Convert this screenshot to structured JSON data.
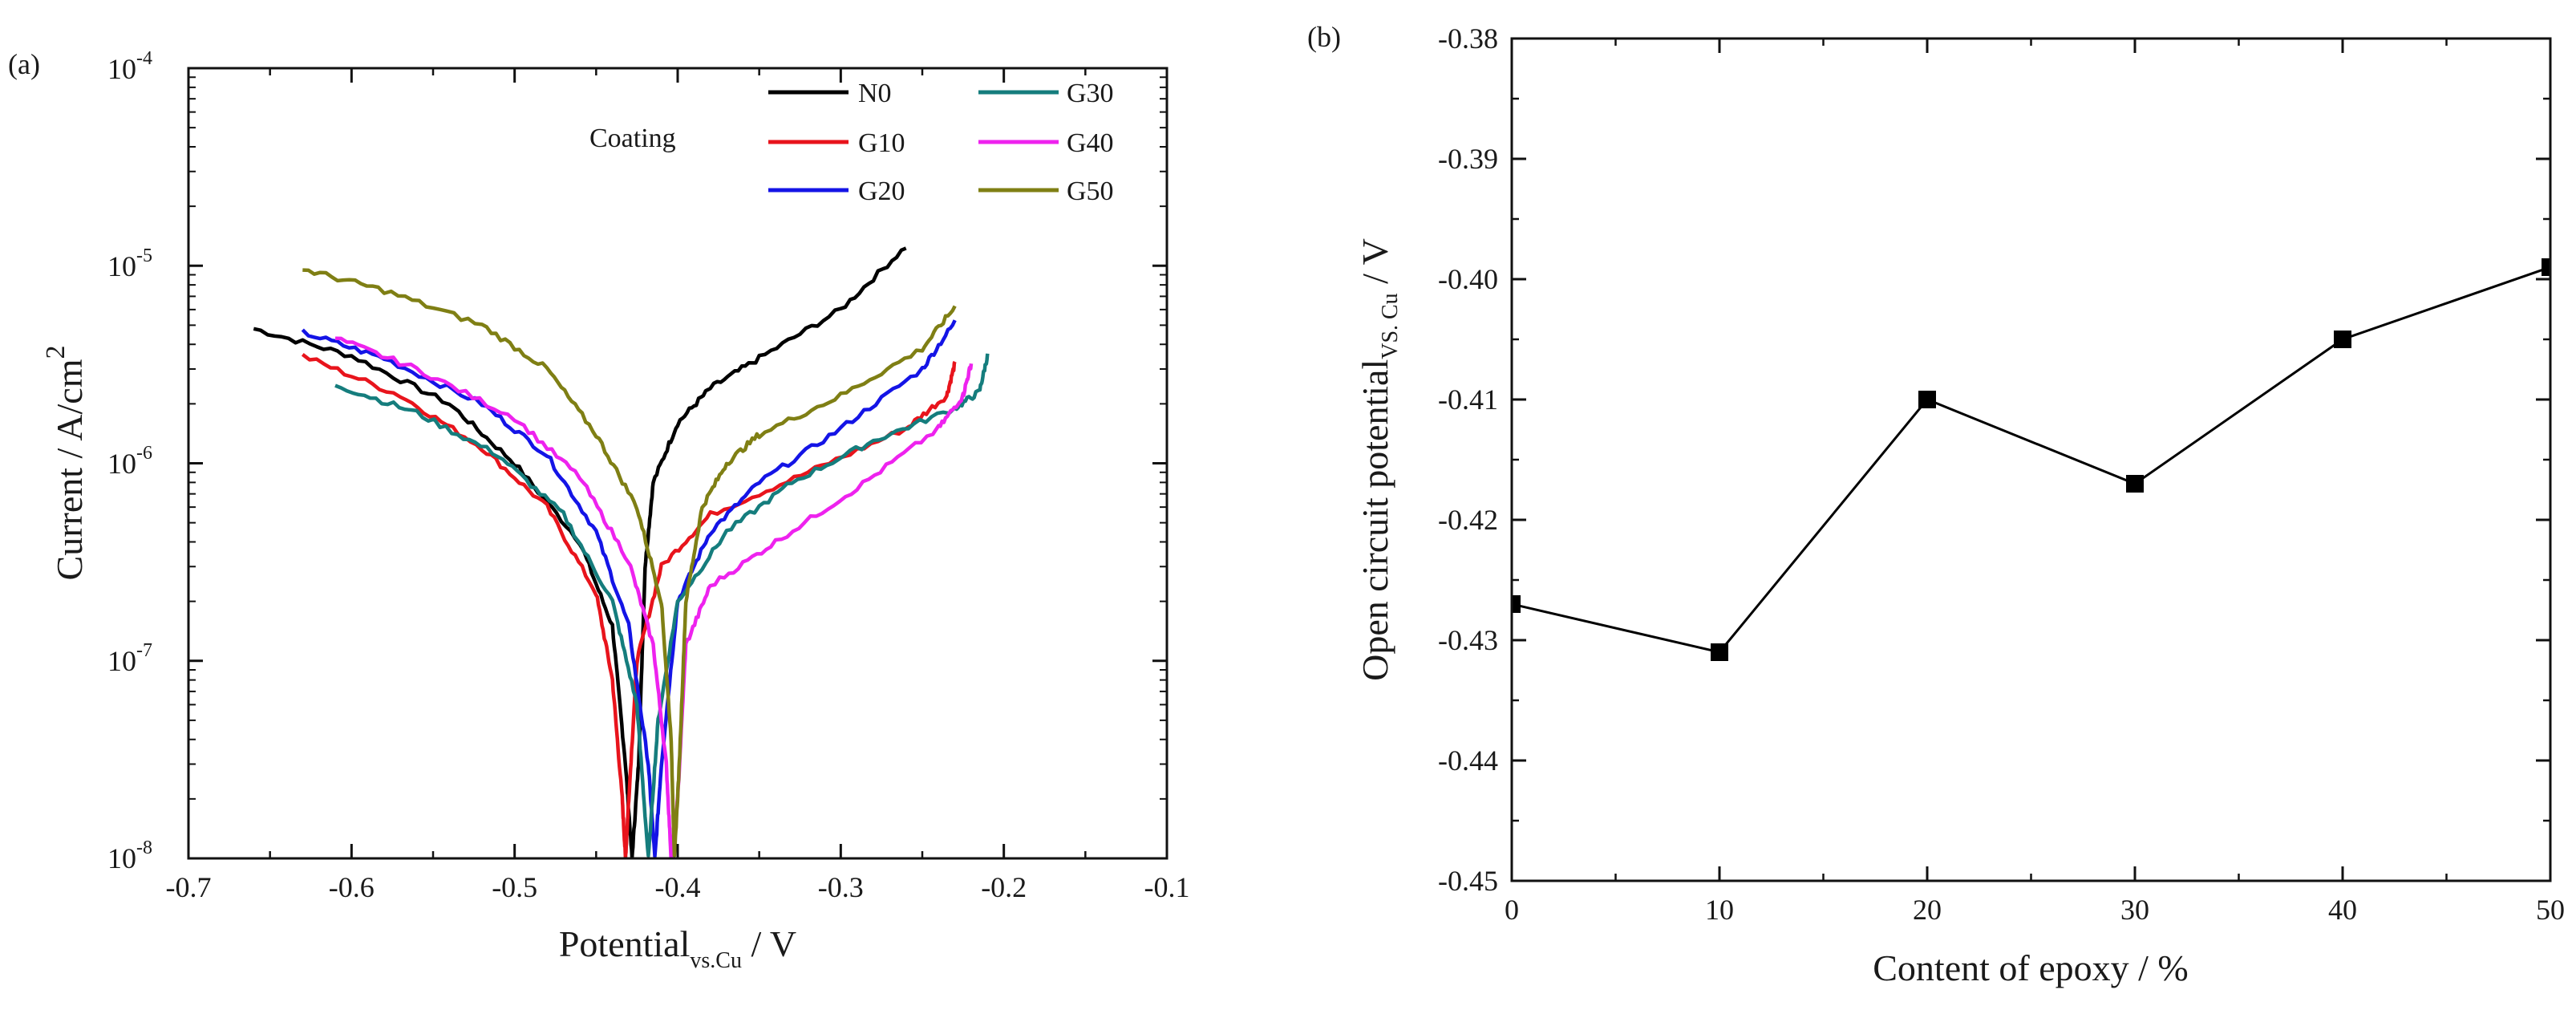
{
  "chart_data": [
    {
      "panel": "(a)",
      "type": "line",
      "title": "",
      "xlabel": "Potential",
      "xlabel_sub": "vs.Cu",
      "xlabel_unit": " / V",
      "ylabel": "Current / A/cm",
      "ylabel_sup": "2",
      "xlim": [
        -0.7,
        -0.1
      ],
      "ylim": [
        1e-08,
        0.0001
      ],
      "yscale": "log",
      "x_ticks": [
        "-0.7",
        "-0.6",
        "-0.5",
        "-0.4",
        "-0.3",
        "-0.2",
        "-0.1"
      ],
      "y_ticks": [
        {
          "base": "10",
          "exp": "-8"
        },
        {
          "base": "10",
          "exp": "-7"
        },
        {
          "base": "10",
          "exp": "-6"
        },
        {
          "base": "10",
          "exp": "-5"
        },
        {
          "base": "10",
          "exp": "-4"
        }
      ],
      "legend_title": "Coating",
      "legend_position": "top-right",
      "series": [
        {
          "name": "N0",
          "color": "#000000",
          "start": -0.66,
          "corr": -0.428,
          "end": -0.26,
          "points": [
            [
              -0.66,
              4.8e-06
            ],
            [
              -0.6,
              3.5e-06
            ],
            [
              -0.54,
              2e-06
            ],
            [
              -0.5,
              1e-06
            ],
            [
              -0.46,
              4e-07
            ],
            [
              -0.44,
              1.5e-07
            ],
            [
              -0.432,
              3e-08
            ],
            [
              -0.428,
              1e-08
            ],
            [
              -0.424,
              3e-08
            ],
            [
              -0.42,
              3e-07
            ],
            [
              -0.415,
              8e-07
            ],
            [
              -0.4,
              1.6e-06
            ],
            [
              -0.38,
              2.4e-06
            ],
            [
              -0.35,
              3.4e-06
            ],
            [
              -0.3,
              6e-06
            ],
            [
              -0.26,
              1.25e-05
            ]
          ]
        },
        {
          "name": "G10",
          "color": "#e8141c",
          "start": -0.63,
          "corr": -0.432,
          "end": -0.23,
          "points": [
            [
              -0.63,
              3.5e-06
            ],
            [
              -0.57,
              2.2e-06
            ],
            [
              -0.52,
              1.2e-06
            ],
            [
              -0.48,
              6e-07
            ],
            [
              -0.45,
              2.2e-07
            ],
            [
              -0.44,
              8e-08
            ],
            [
              -0.434,
              2e-08
            ],
            [
              -0.432,
              1e-08
            ],
            [
              -0.43,
              2e-08
            ],
            [
              -0.425,
              1e-07
            ],
            [
              -0.41,
              3e-07
            ],
            [
              -0.38,
              5.5e-07
            ],
            [
              -0.32,
              9e-07
            ],
            [
              -0.26,
              1.5e-06
            ],
            [
              -0.235,
              2.2e-06
            ],
            [
              -0.23,
              3.2e-06
            ]
          ]
        },
        {
          "name": "G20",
          "color": "#1414e6",
          "start": -0.63,
          "corr": -0.414,
          "end": -0.23,
          "points": [
            [
              -0.63,
              4.6e-06
            ],
            [
              -0.58,
              3.4e-06
            ],
            [
              -0.52,
              2e-06
            ],
            [
              -0.48,
              1.1e-06
            ],
            [
              -0.45,
              4.5e-07
            ],
            [
              -0.43,
              1.5e-07
            ],
            [
              -0.418,
              3e-08
            ],
            [
              -0.414,
              1e-08
            ],
            [
              -0.41,
              3e-08
            ],
            [
              -0.4,
              2e-07
            ],
            [
              -0.38,
              4.5e-07
            ],
            [
              -0.35,
              8e-07
            ],
            [
              -0.3,
              1.5e-06
            ],
            [
              -0.25,
              3e-06
            ],
            [
              -0.23,
              5.2e-06
            ]
          ]
        },
        {
          "name": "G30",
          "color": "#157d7d",
          "start": -0.61,
          "corr": -0.418,
          "end": -0.21,
          "points": [
            [
              -0.61,
              2.5e-06
            ],
            [
              -0.56,
              1.8e-06
            ],
            [
              -0.51,
              1.1e-06
            ],
            [
              -0.47,
              5.5e-07
            ],
            [
              -0.44,
              2e-07
            ],
            [
              -0.425,
              6e-08
            ],
            [
              -0.418,
              1e-08
            ],
            [
              -0.412,
              5e-08
            ],
            [
              -0.4,
              2e-07
            ],
            [
              -0.37,
              4.5e-07
            ],
            [
              -0.33,
              8e-07
            ],
            [
              -0.28,
              1.3e-06
            ],
            [
              -0.23,
              1.9e-06
            ],
            [
              -0.215,
              2.3e-06
            ],
            [
              -0.21,
              3.5e-06
            ]
          ]
        },
        {
          "name": "G40",
          "color": "#ee22ee",
          "start": -0.61,
          "corr": -0.404,
          "end": -0.22,
          "points": [
            [
              -0.61,
              4.3e-06
            ],
            [
              -0.56,
              3e-06
            ],
            [
              -0.5,
              1.7e-06
            ],
            [
              -0.46,
              8.5e-07
            ],
            [
              -0.43,
              3.2e-07
            ],
            [
              -0.415,
              1.2e-07
            ],
            [
              -0.407,
              3e-08
            ],
            [
              -0.404,
              1e-08
            ],
            [
              -0.4,
              2e-08
            ],
            [
              -0.395,
              1.2e-07
            ],
            [
              -0.38,
              2.4e-07
            ],
            [
              -0.34,
              4e-07
            ],
            [
              -0.29,
              7.5e-07
            ],
            [
              -0.24,
              1.5e-06
            ],
            [
              -0.225,
              2.2e-06
            ],
            [
              -0.22,
              3.2e-06
            ]
          ]
        },
        {
          "name": "G50",
          "color": "#7f7f14",
          "start": -0.63,
          "corr": -0.402,
          "end": -0.23,
          "points": [
            [
              -0.63,
              9.6e-06
            ],
            [
              -0.58,
              7.5e-06
            ],
            [
              -0.52,
              5e-06
            ],
            [
              -0.48,
              3e-06
            ],
            [
              -0.45,
              1.4e-06
            ],
            [
              -0.425,
              6e-07
            ],
            [
              -0.41,
              2e-07
            ],
            [
              -0.404,
              4e-08
            ],
            [
              -0.402,
              1e-08
            ],
            [
              -0.399,
              3e-08
            ],
            [
              -0.395,
              2e-07
            ],
            [
              -0.385,
              6e-07
            ],
            [
              -0.37,
              1e-06
            ],
            [
              -0.35,
              1.4e-06
            ],
            [
              -0.3,
              2.2e-06
            ],
            [
              -0.25,
              3.8e-06
            ],
            [
              -0.23,
              6.2e-06
            ]
          ]
        }
      ]
    },
    {
      "panel": "(b)",
      "type": "line",
      "title": "",
      "xlabel": "Content of epoxy / %",
      "ylabel": "Open circuit potential",
      "ylabel_sub": "VS. Cu",
      "ylabel_unit": " / V",
      "xlim": [
        0,
        50
      ],
      "ylim": [
        -0.45,
        -0.38
      ],
      "x_ticks": [
        "0",
        "10",
        "20",
        "30",
        "40",
        "50"
      ],
      "y_ticks": [
        "-0.45",
        "-0.44",
        "-0.43",
        "-0.42",
        "-0.41",
        "-0.40",
        "-0.39",
        "-0.38"
      ],
      "x": [
        0,
        10,
        20,
        30,
        40,
        50
      ],
      "y": [
        -0.427,
        -0.431,
        -0.41,
        -0.417,
        -0.405,
        -0.399
      ],
      "color": "#000000",
      "marker": "square"
    }
  ]
}
